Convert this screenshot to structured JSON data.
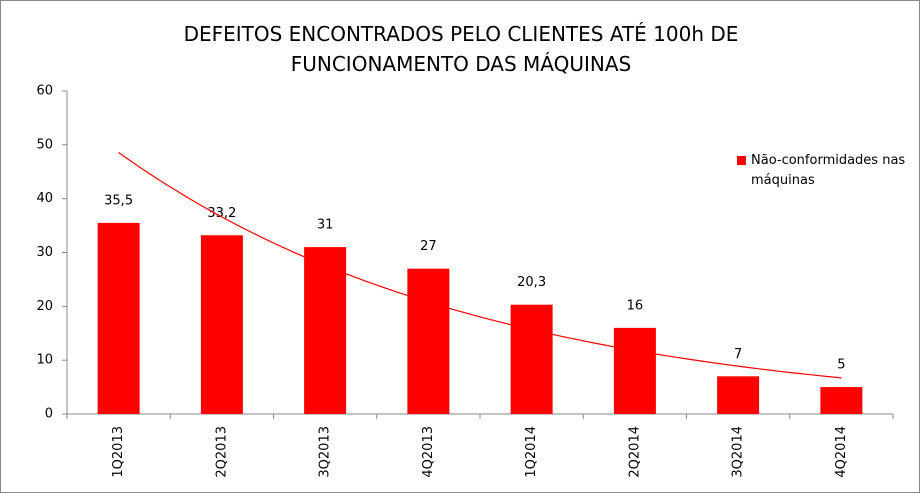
{
  "chart_data": {
    "type": "bar",
    "title": "DEFEITOS ENCONTRADOS PELO CLIENTES ATÉ 100h DE FUNCIONAMENTO DAS MÁQUINAS",
    "categories": [
      "1Q2013",
      "2Q2013",
      "3Q2013",
      "4Q2013",
      "1Q2014",
      "2Q2014",
      "3Q2014",
      "4Q2014"
    ],
    "series": [
      {
        "name": "Não-conformidades nas máquinas",
        "color": "#ff0000",
        "values": [
          35.5,
          33.2,
          31,
          27,
          20.3,
          16,
          7,
          5
        ],
        "value_labels": [
          "35,5",
          "33,2",
          "31",
          "27",
          "20,3",
          "16",
          "7",
          "5"
        ]
      }
    ],
    "trendline": "exponential",
    "ylim": [
      0,
      60
    ],
    "yticks": [
      0,
      10,
      20,
      30,
      40,
      50,
      60
    ],
    "legend": "right"
  }
}
